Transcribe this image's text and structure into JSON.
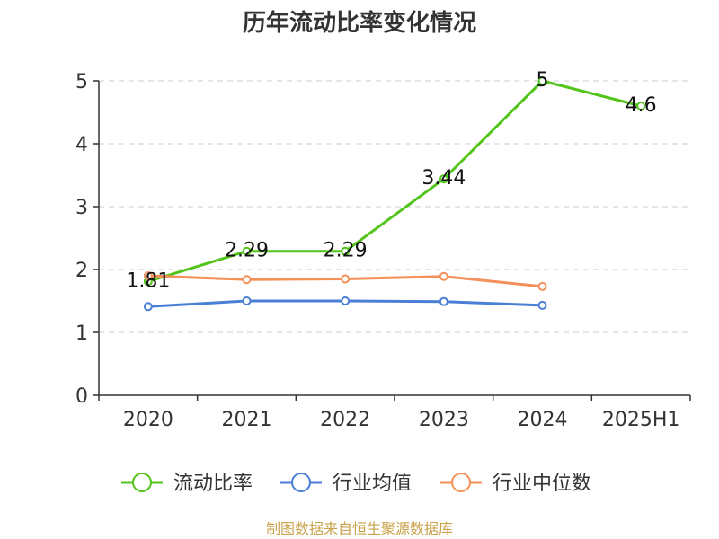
{
  "chart_data": {
    "type": "line",
    "title": "历年流动比率变化情况",
    "categories": [
      "2020",
      "2021",
      "2022",
      "2023",
      "2024",
      "2025H1"
    ],
    "ylim": [
      0,
      5
    ],
    "yticks": [
      0,
      1,
      2,
      3,
      4,
      5
    ],
    "grid": true,
    "legend_position": "bottom",
    "series": [
      {
        "name": "流动比率",
        "color": "#52c41a",
        "values": [
          1.81,
          2.29,
          2.29,
          3.44,
          5,
          4.6
        ],
        "labels": [
          "1.81",
          "2.29",
          "2.29",
          "3.44",
          "5",
          "4.6"
        ]
      },
      {
        "name": "行业均值",
        "color": "#4a7fd6",
        "values": [
          1.41,
          1.5,
          1.5,
          1.49,
          1.43,
          null
        ]
      },
      {
        "name": "行业中位数",
        "color": "#f5905a",
        "values": [
          1.9,
          1.84,
          1.85,
          1.89,
          1.73,
          null
        ]
      }
    ]
  },
  "source": "制图数据来自恒生聚源数据库"
}
